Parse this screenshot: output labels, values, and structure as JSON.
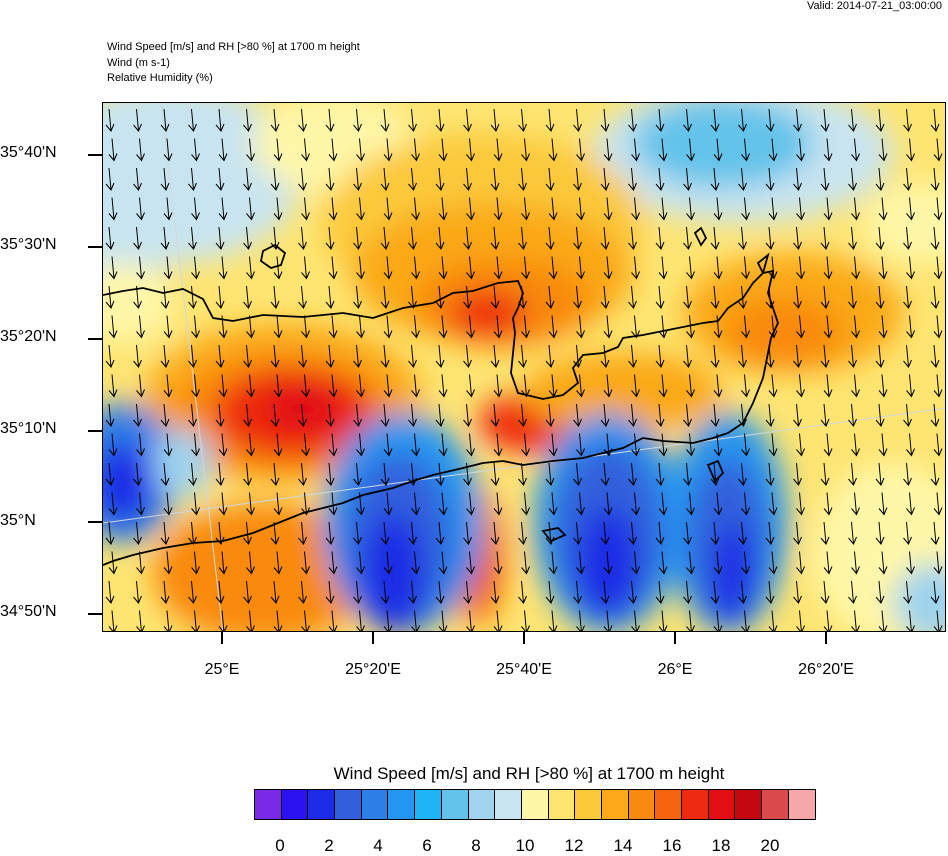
{
  "valid_label": "Valid: 2014-07-21_03:00:00",
  "header_lines": [
    "Wind Speed [m/s] and RH [>80 %] at 1700 m height",
    "Wind    (m s-1)",
    "Relative Humidity    (%)"
  ],
  "lat_labels": [
    "35°40'N",
    "35°30'N",
    "35°20'N",
    "35°10'N",
    "35°N",
    "34°50'N"
  ],
  "lon_labels": [
    "25°E",
    "25°20'E",
    "25°40'E",
    "26°E",
    "26°20'E"
  ],
  "colorbar": {
    "title": "Wind Speed [m/s] and RH [>80 %] at 1700 m height",
    "tick_labels": [
      "0",
      "2",
      "4",
      "6",
      "8",
      "10",
      "12",
      "14",
      "16",
      "18",
      "20"
    ],
    "colors": [
      "#7a2ae6",
      "#2b12f0",
      "#1c2ce6",
      "#3260dc",
      "#2e7ee8",
      "#2596f0",
      "#1eb4f5",
      "#64c3ea",
      "#9fd3ee",
      "#c8e4f0",
      "#fff7a8",
      "#fee572",
      "#fcc93a",
      "#fba918",
      "#f98a10",
      "#f5640c",
      "#ee2b10",
      "#e30e12",
      "#c40810",
      "#d94a4a",
      "#f6a8a8"
    ]
  },
  "wind_vectors": {
    "direction": "from north (pointing south)",
    "spacing": "regular grid"
  }
}
